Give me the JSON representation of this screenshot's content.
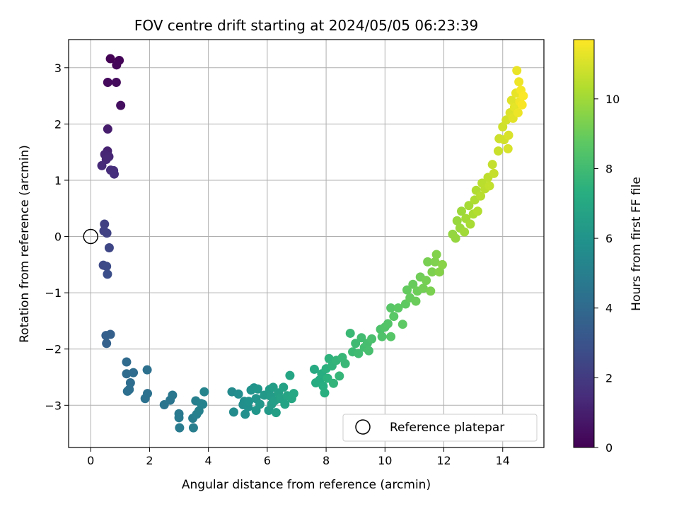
{
  "chart_data": {
    "type": "scatter",
    "title": "FOV centre drift starting at 2024/05/05 06:23:39",
    "xlabel": "Angular distance from reference (arcmin)",
    "ylabel": "Rotation from reference (arcmin)",
    "xlim": [
      -0.75,
      15.4
    ],
    "ylim": [
      -3.75,
      3.5
    ],
    "xticks": [
      0,
      2,
      4,
      6,
      8,
      10,
      12,
      14
    ],
    "yticks": [
      -3,
      -2,
      -1,
      0,
      1,
      2,
      3
    ],
    "grid": true,
    "colorbar": {
      "label": "Hours from first FF file",
      "colormap": "viridis",
      "range": [
        0,
        11.7
      ],
      "ticks": [
        0,
        2,
        4,
        6,
        8,
        10
      ]
    },
    "legend": {
      "position": "lower-right",
      "entries": [
        "Reference platepar"
      ]
    },
    "reference_marker": {
      "x": 0,
      "y": 0,
      "label": "Reference platepar",
      "style": "hollow-circle"
    },
    "points": [
      {
        "x": 0.67,
        "y": 3.16,
        "t": 0.05
      },
      {
        "x": 0.97,
        "y": 3.13,
        "t": 0.1
      },
      {
        "x": 0.88,
        "y": 3.05,
        "t": 0.15
      },
      {
        "x": 0.58,
        "y": 2.74,
        "t": 0.3
      },
      {
        "x": 0.87,
        "y": 2.74,
        "t": 0.35
      },
      {
        "x": 1.02,
        "y": 2.33,
        "t": 0.45
      },
      {
        "x": 0.58,
        "y": 1.91,
        "t": 0.9
      },
      {
        "x": 0.57,
        "y": 1.52,
        "t": 1.1
      },
      {
        "x": 0.48,
        "y": 1.46,
        "t": 1.2
      },
      {
        "x": 0.62,
        "y": 1.42,
        "t": 1.25
      },
      {
        "x": 0.53,
        "y": 1.37,
        "t": 1.3
      },
      {
        "x": 0.38,
        "y": 1.26,
        "t": 1.35
      },
      {
        "x": 0.68,
        "y": 1.18,
        "t": 1.45
      },
      {
        "x": 0.78,
        "y": 1.17,
        "t": 1.5
      },
      {
        "x": 0.8,
        "y": 1.11,
        "t": 1.55
      },
      {
        "x": 0.47,
        "y": 0.22,
        "t": 2.2
      },
      {
        "x": 0.45,
        "y": 0.1,
        "t": 2.25
      },
      {
        "x": 0.55,
        "y": 0.06,
        "t": 2.3
      },
      {
        "x": 0.63,
        "y": -0.2,
        "t": 2.45
      },
      {
        "x": 0.43,
        "y": -0.51,
        "t": 2.6
      },
      {
        "x": 0.54,
        "y": -0.53,
        "t": 2.65
      },
      {
        "x": 0.57,
        "y": -0.67,
        "t": 2.75
      },
      {
        "x": 0.52,
        "y": -1.76,
        "t": 3.5
      },
      {
        "x": 0.67,
        "y": -1.74,
        "t": 3.55
      },
      {
        "x": 0.54,
        "y": -1.9,
        "t": 3.6
      },
      {
        "x": 1.22,
        "y": -2.23,
        "t": 4.0
      },
      {
        "x": 1.22,
        "y": -2.44,
        "t": 4.05
      },
      {
        "x": 1.45,
        "y": -2.42,
        "t": 4.1
      },
      {
        "x": 1.35,
        "y": -2.6,
        "t": 4.15
      },
      {
        "x": 1.31,
        "y": -2.72,
        "t": 4.2
      },
      {
        "x": 1.25,
        "y": -2.75,
        "t": 4.25
      },
      {
        "x": 1.92,
        "y": -2.37,
        "t": 4.3
      },
      {
        "x": 1.93,
        "y": -2.79,
        "t": 4.35
      },
      {
        "x": 1.85,
        "y": -2.88,
        "t": 4.4
      },
      {
        "x": 2.5,
        "y": -2.99,
        "t": 4.5
      },
      {
        "x": 2.7,
        "y": -2.91,
        "t": 4.55
      },
      {
        "x": 2.78,
        "y": -2.82,
        "t": 4.6
      },
      {
        "x": 3.0,
        "y": -3.15,
        "t": 4.7
      },
      {
        "x": 3.0,
        "y": -3.22,
        "t": 4.75
      },
      {
        "x": 3.02,
        "y": -3.4,
        "t": 4.8
      },
      {
        "x": 3.47,
        "y": -3.23,
        "t": 4.9
      },
      {
        "x": 3.49,
        "y": -3.4,
        "t": 4.95
      },
      {
        "x": 3.57,
        "y": -2.92,
        "t": 5.0
      },
      {
        "x": 3.6,
        "y": -3.16,
        "t": 5.05
      },
      {
        "x": 3.68,
        "y": -3.1,
        "t": 5.1
      },
      {
        "x": 3.75,
        "y": -2.97,
        "t": 5.15
      },
      {
        "x": 3.81,
        "y": -2.98,
        "t": 5.2
      },
      {
        "x": 3.86,
        "y": -2.76,
        "t": 5.25
      },
      {
        "x": 4.8,
        "y": -2.76,
        "t": 5.5
      },
      {
        "x": 4.86,
        "y": -3.12,
        "t": 5.55
      },
      {
        "x": 5.02,
        "y": -2.8,
        "t": 5.6
      },
      {
        "x": 5.18,
        "y": -2.99,
        "t": 5.65
      },
      {
        "x": 5.22,
        "y": -2.93,
        "t": 5.7
      },
      {
        "x": 5.25,
        "y": -3.16,
        "t": 5.75
      },
      {
        "x": 5.35,
        "y": -3.03,
        "t": 5.8
      },
      {
        "x": 5.37,
        "y": -2.93,
        "t": 5.85
      },
      {
        "x": 5.45,
        "y": -2.73,
        "t": 5.9
      },
      {
        "x": 5.55,
        "y": -2.69,
        "t": 5.95
      },
      {
        "x": 5.62,
        "y": -2.88,
        "t": 6.0
      },
      {
        "x": 5.68,
        "y": -2.71,
        "t": 6.05
      },
      {
        "x": 5.62,
        "y": -3.09,
        "t": 6.1
      },
      {
        "x": 5.75,
        "y": -2.98,
        "t": 6.15
      },
      {
        "x": 5.9,
        "y": -2.82,
        "t": 6.2
      },
      {
        "x": 6.05,
        "y": -3.09,
        "t": 6.25
      },
      {
        "x": 6.08,
        "y": -2.72,
        "t": 6.3
      },
      {
        "x": 6.12,
        "y": -2.84,
        "t": 6.35
      },
      {
        "x": 6.15,
        "y": -2.98,
        "t": 6.4
      },
      {
        "x": 6.2,
        "y": -2.68,
        "t": 6.45
      },
      {
        "x": 6.25,
        "y": -2.92,
        "t": 6.5
      },
      {
        "x": 6.3,
        "y": -3.13,
        "t": 6.55
      },
      {
        "x": 6.38,
        "y": -2.78,
        "t": 6.6
      },
      {
        "x": 6.45,
        "y": -2.88,
        "t": 6.65
      },
      {
        "x": 6.55,
        "y": -2.68,
        "t": 6.7
      },
      {
        "x": 6.6,
        "y": -2.98,
        "t": 6.75
      },
      {
        "x": 6.68,
        "y": -2.83,
        "t": 6.8
      },
      {
        "x": 6.77,
        "y": -2.47,
        "t": 6.85
      },
      {
        "x": 6.83,
        "y": -2.88,
        "t": 6.9
      },
      {
        "x": 6.9,
        "y": -2.79,
        "t": 6.95
      },
      {
        "x": 7.6,
        "y": -2.36,
        "t": 7.1
      },
      {
        "x": 7.65,
        "y": -2.6,
        "t": 7.15
      },
      {
        "x": 7.78,
        "y": -2.55,
        "t": 7.2
      },
      {
        "x": 7.85,
        "y": -2.44,
        "t": 7.25
      },
      {
        "x": 7.9,
        "y": -2.66,
        "t": 7.3
      },
      {
        "x": 7.95,
        "y": -2.78,
        "t": 7.35
      },
      {
        "x": 8.0,
        "y": -2.35,
        "t": 7.4
      },
      {
        "x": 8.05,
        "y": -2.52,
        "t": 7.45
      },
      {
        "x": 8.1,
        "y": -2.17,
        "t": 7.5
      },
      {
        "x": 8.2,
        "y": -2.3,
        "t": 7.55
      },
      {
        "x": 8.25,
        "y": -2.61,
        "t": 7.6
      },
      {
        "x": 8.35,
        "y": -2.2,
        "t": 7.65
      },
      {
        "x": 8.45,
        "y": -2.48,
        "t": 7.7
      },
      {
        "x": 8.55,
        "y": -2.15,
        "t": 7.75
      },
      {
        "x": 8.65,
        "y": -2.26,
        "t": 7.8
      },
      {
        "x": 8.82,
        "y": -1.72,
        "t": 7.85
      },
      {
        "x": 8.9,
        "y": -2.05,
        "t": 7.9
      },
      {
        "x": 9.0,
        "y": -1.9,
        "t": 7.95
      },
      {
        "x": 9.1,
        "y": -2.08,
        "t": 8.0
      },
      {
        "x": 9.2,
        "y": -1.8,
        "t": 8.05
      },
      {
        "x": 9.3,
        "y": -1.97,
        "t": 8.1
      },
      {
        "x": 9.4,
        "y": -1.9,
        "t": 8.15
      },
      {
        "x": 9.45,
        "y": -2.03,
        "t": 8.2
      },
      {
        "x": 9.55,
        "y": -1.82,
        "t": 8.25
      },
      {
        "x": 9.85,
        "y": -1.65,
        "t": 8.35
      },
      {
        "x": 9.9,
        "y": -1.78,
        "t": 8.4
      },
      {
        "x": 10.0,
        "y": -1.61,
        "t": 8.45
      },
      {
        "x": 10.1,
        "y": -1.55,
        "t": 8.5
      },
      {
        "x": 10.2,
        "y": -1.78,
        "t": 8.55
      },
      {
        "x": 10.2,
        "y": -1.27,
        "t": 8.6
      },
      {
        "x": 10.3,
        "y": -1.42,
        "t": 8.65
      },
      {
        "x": 10.45,
        "y": -1.27,
        "t": 8.7
      },
      {
        "x": 10.6,
        "y": -1.56,
        "t": 8.75
      },
      {
        "x": 10.7,
        "y": -1.2,
        "t": 8.8
      },
      {
        "x": 10.75,
        "y": -0.95,
        "t": 8.85
      },
      {
        "x": 10.85,
        "y": -1.09,
        "t": 8.9
      },
      {
        "x": 10.95,
        "y": -0.85,
        "t": 8.95
      },
      {
        "x": 11.05,
        "y": -1.15,
        "t": 9.0
      },
      {
        "x": 11.1,
        "y": -0.97,
        "t": 9.05
      },
      {
        "x": 11.2,
        "y": -0.72,
        "t": 9.1
      },
      {
        "x": 11.3,
        "y": -0.92,
        "t": 9.15
      },
      {
        "x": 11.4,
        "y": -0.78,
        "t": 9.2
      },
      {
        "x": 11.45,
        "y": -0.45,
        "t": 9.25
      },
      {
        "x": 11.55,
        "y": -0.97,
        "t": 9.3
      },
      {
        "x": 11.6,
        "y": -0.63,
        "t": 9.35
      },
      {
        "x": 11.7,
        "y": -0.45,
        "t": 9.4
      },
      {
        "x": 11.75,
        "y": -0.32,
        "t": 9.45
      },
      {
        "x": 11.85,
        "y": -0.63,
        "t": 9.5
      },
      {
        "x": 11.95,
        "y": -0.5,
        "t": 9.55
      },
      {
        "x": 12.3,
        "y": 0.04,
        "t": 9.75
      },
      {
        "x": 12.4,
        "y": -0.03,
        "t": 9.8
      },
      {
        "x": 12.45,
        "y": 0.28,
        "t": 9.85
      },
      {
        "x": 12.55,
        "y": 0.15,
        "t": 9.9
      },
      {
        "x": 12.6,
        "y": 0.45,
        "t": 9.95
      },
      {
        "x": 12.7,
        "y": 0.08,
        "t": 10.0
      },
      {
        "x": 12.75,
        "y": 0.32,
        "t": 10.05
      },
      {
        "x": 12.85,
        "y": 0.55,
        "t": 10.1
      },
      {
        "x": 12.9,
        "y": 0.22,
        "t": 10.15
      },
      {
        "x": 13.0,
        "y": 0.4,
        "t": 10.2
      },
      {
        "x": 13.05,
        "y": 0.65,
        "t": 10.25
      },
      {
        "x": 13.1,
        "y": 0.82,
        "t": 10.3
      },
      {
        "x": 13.15,
        "y": 0.45,
        "t": 10.35
      },
      {
        "x": 13.25,
        "y": 0.72,
        "t": 10.4
      },
      {
        "x": 13.3,
        "y": 0.95,
        "t": 10.45
      },
      {
        "x": 13.4,
        "y": 0.85,
        "t": 10.5
      },
      {
        "x": 13.5,
        "y": 1.05,
        "t": 10.55
      },
      {
        "x": 13.55,
        "y": 0.9,
        "t": 10.6
      },
      {
        "x": 13.65,
        "y": 1.28,
        "t": 10.65
      },
      {
        "x": 13.7,
        "y": 1.12,
        "t": 10.7
      },
      {
        "x": 13.85,
        "y": 1.52,
        "t": 10.75
      },
      {
        "x": 13.88,
        "y": 1.74,
        "t": 10.8
      },
      {
        "x": 14.0,
        "y": 1.95,
        "t": 10.85
      },
      {
        "x": 14.05,
        "y": 1.72,
        "t": 10.9
      },
      {
        "x": 14.12,
        "y": 2.07,
        "t": 10.95
      },
      {
        "x": 14.18,
        "y": 1.56,
        "t": 11.0
      },
      {
        "x": 14.2,
        "y": 1.8,
        "t": 11.05
      },
      {
        "x": 14.25,
        "y": 2.2,
        "t": 11.1
      },
      {
        "x": 14.3,
        "y": 2.42,
        "t": 11.15
      },
      {
        "x": 14.35,
        "y": 2.1,
        "t": 11.2
      },
      {
        "x": 14.4,
        "y": 2.3,
        "t": 11.25
      },
      {
        "x": 14.45,
        "y": 2.55,
        "t": 11.3
      },
      {
        "x": 14.48,
        "y": 2.95,
        "t": 11.35
      },
      {
        "x": 14.52,
        "y": 2.2,
        "t": 11.4
      },
      {
        "x": 14.55,
        "y": 2.75,
        "t": 11.45
      },
      {
        "x": 14.58,
        "y": 2.4,
        "t": 11.5
      },
      {
        "x": 14.62,
        "y": 2.6,
        "t": 11.55
      },
      {
        "x": 14.66,
        "y": 2.34,
        "t": 11.6
      },
      {
        "x": 14.7,
        "y": 2.5,
        "t": 11.65
      }
    ]
  }
}
